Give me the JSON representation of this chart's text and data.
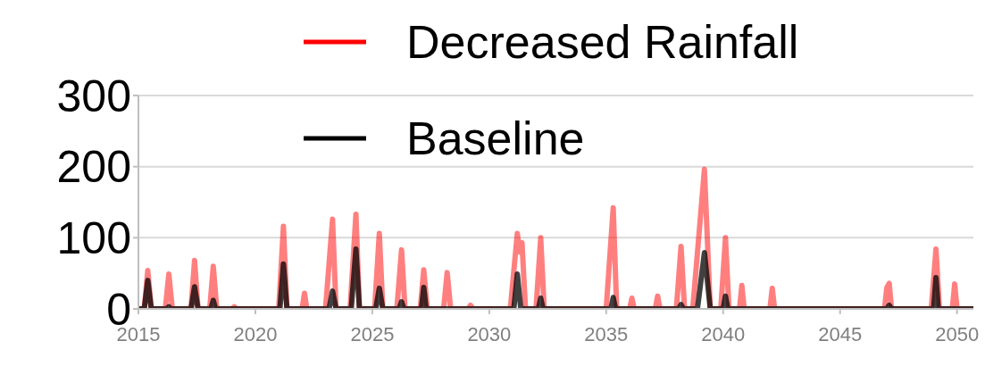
{
  "chart_data": {
    "type": "line",
    "xlim": [
      2015,
      2050.7
    ],
    "xticks": [
      2015,
      2020,
      2025,
      2030,
      2035,
      2040,
      2045,
      2050
    ],
    "ylim": [
      0,
      300
    ],
    "yticks": [
      0,
      100,
      200,
      300
    ],
    "grid": "y",
    "legend": "top",
    "marker": "none",
    "line_style": "solid",
    "series": [
      {
        "name": "Decreased Rainfall",
        "color": "#ff0000",
        "x": [
          2015,
          2015.25,
          2015.4,
          2015.55,
          2016.15,
          2016.3,
          2016.45,
          2017.25,
          2017.4,
          2017.55,
          2018.05,
          2018.2,
          2018.35,
          2019,
          2019.1,
          2019.2,
          2021.0,
          2021.2,
          2021.35,
          2022.0,
          2022.1,
          2022.2,
          2023.0,
          2023.3,
          2023.45,
          2024.05,
          2024.3,
          2024.45,
          2025.1,
          2025.3,
          2025.45,
          2026.05,
          2026.25,
          2026.4,
          2027.05,
          2027.2,
          2027.35,
          2028.05,
          2028.2,
          2028.35,
          2029.1,
          2029.2,
          2029.3,
          2030.9,
          2031.2,
          2031.3,
          2031.4,
          2031.55,
          2032.0,
          2032.2,
          2032.35,
          2035.0,
          2035.3,
          2035.45,
          2036.0,
          2036.1,
          2036.2,
          2037.1,
          2037.2,
          2037.3,
          2038.0,
          2038.2,
          2038.35,
          2038.7,
          2039.2,
          2039.45,
          2039.9,
          2040.1,
          2040.25,
          2040.7,
          2040.8,
          2040.9,
          2042.0,
          2042.1,
          2042.2,
          2046.9,
          2047.0,
          2047.1,
          2047.2,
          2048.9,
          2049.1,
          2049.25,
          2049.8,
          2049.9,
          2050.0,
          2050.7
        ],
        "values": [
          0,
          0,
          54,
          0,
          0,
          49,
          0,
          0,
          68,
          0,
          0,
          60,
          0,
          0,
          3,
          0,
          0,
          116,
          0,
          0,
          22,
          0,
          0,
          126,
          0,
          0,
          133,
          0,
          0,
          106,
          0,
          0,
          83,
          0,
          0,
          55,
          0,
          0,
          51,
          0,
          0,
          5,
          0,
          0,
          106,
          80,
          93,
          0,
          0,
          100,
          0,
          0,
          142,
          0,
          0,
          15,
          0,
          0,
          18,
          0,
          0,
          88,
          0,
          0,
          196,
          0,
          0,
          100,
          0,
          0,
          33,
          0,
          0,
          29,
          0,
          0,
          30,
          36,
          0,
          0,
          84,
          0,
          0,
          35,
          0,
          0
        ]
      },
      {
        "name": "Baseline",
        "color": "#000000",
        "x": [
          2015,
          2015.25,
          2015.4,
          2015.55,
          2016.2,
          2016.3,
          2016.4,
          2017.25,
          2017.4,
          2017.55,
          2018.1,
          2018.2,
          2018.3,
          2021.05,
          2021.2,
          2021.35,
          2023.15,
          2023.3,
          2023.45,
          2024.1,
          2024.3,
          2024.45,
          2025.15,
          2025.3,
          2025.45,
          2026.15,
          2026.25,
          2026.35,
          2027.1,
          2027.2,
          2027.3,
          2031.05,
          2031.2,
          2031.35,
          2032.1,
          2032.2,
          2032.3,
          2035.2,
          2035.3,
          2035.4,
          2038.1,
          2038.2,
          2038.3,
          2038.9,
          2039.2,
          2039.45,
          2040.0,
          2040.1,
          2040.2,
          2047.0,
          2047.1,
          2047.2,
          2049.0,
          2049.1,
          2049.2,
          2050.7
        ],
        "values": [
          0,
          0,
          40,
          0,
          0,
          3,
          0,
          0,
          31,
          0,
          0,
          12,
          0,
          0,
          63,
          0,
          0,
          25,
          0,
          0,
          84,
          0,
          0,
          29,
          0,
          0,
          10,
          0,
          0,
          30,
          0,
          0,
          49,
          0,
          0,
          15,
          0,
          0,
          16,
          0,
          0,
          6,
          0,
          0,
          79,
          0,
          0,
          18,
          0,
          0,
          5,
          0,
          0,
          44,
          0,
          0
        ]
      }
    ]
  }
}
